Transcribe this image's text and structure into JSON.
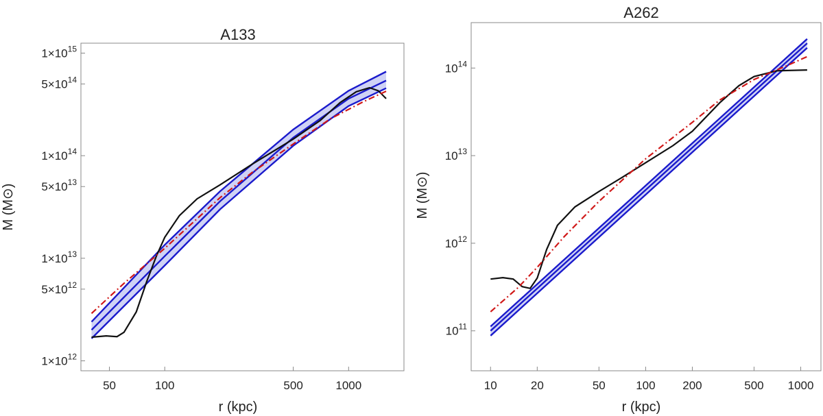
{
  "chart_data": [
    {
      "type": "line",
      "title": "A133",
      "xlabel": "r (kpc)",
      "ylabel": "M (M⊙)",
      "xscale": "log",
      "yscale": "log",
      "xlim": [
        35,
        2000
      ],
      "ylim": [
        800000000000.0,
        1250000000000000.0
      ],
      "x_ticks": [
        {
          "value": 50,
          "label": "50"
        },
        {
          "value": 100,
          "label": "100"
        },
        {
          "value": 500,
          "label": "500"
        },
        {
          "value": 1000,
          "label": "1000"
        }
      ],
      "y_ticks": [
        {
          "value": 1000000000000.0,
          "mant": "1",
          "exp": "12"
        },
        {
          "value": 5000000000000.0,
          "mant": "5",
          "exp": "12"
        },
        {
          "value": 10000000000000.0,
          "mant": "1",
          "exp": "13"
        },
        {
          "value": 50000000000000.0,
          "mant": "5",
          "exp": "13"
        },
        {
          "value": 100000000000000.0,
          "mant": "1",
          "exp": "14"
        },
        {
          "value": 500000000000000.0,
          "mant": "5",
          "exp": "14"
        },
        {
          "value": 1000000000000000.0,
          "mant": "1",
          "exp": "15"
        }
      ],
      "series": [
        {
          "kind": "band",
          "color": "#1a1acc",
          "fill": "#cfd2f5",
          "upper": [
            [
              40,
              2400000000000.0
            ],
            [
              100,
              13500000000000.0
            ],
            [
              200,
              45000000000000.0
            ],
            [
              500,
              180000000000000.0
            ],
            [
              1000,
              430000000000000.0
            ],
            [
              1600,
              660000000000000.0
            ]
          ],
          "middle": [
            [
              40,
              2000000000000.0
            ],
            [
              100,
              10500000000000.0
            ],
            [
              200,
              36000000000000.0
            ],
            [
              500,
              150000000000000.0
            ],
            [
              1000,
              360000000000000.0
            ],
            [
              1600,
              540000000000000.0
            ]
          ],
          "lower": [
            [
              40,
              1650000000000.0
            ],
            [
              100,
              8500000000000.0
            ],
            [
              200,
              30000000000000.0
            ],
            [
              500,
              125000000000000.0
            ],
            [
              1000,
              305000000000000.0
            ],
            [
              1600,
              455000000000000.0
            ]
          ]
        },
        {
          "kind": "line",
          "color": "#111111",
          "dash": "",
          "points": [
            [
              40,
              1700000000000.0
            ],
            [
              48,
              1750000000000.0
            ],
            [
              55,
              1720000000000.0
            ],
            [
              60,
              1900000000000.0
            ],
            [
              70,
              3000000000000.0
            ],
            [
              80,
              6000000000000.0
            ],
            [
              90,
              10500000000000.0
            ],
            [
              100,
              16000000000000.0
            ],
            [
              120,
              26000000000000.0
            ],
            [
              150,
              38000000000000.0
            ],
            [
              200,
              52000000000000.0
            ],
            [
              300,
              83000000000000.0
            ],
            [
              500,
              145000000000000.0
            ],
            [
              700,
              220000000000000.0
            ],
            [
              900,
              330000000000000.0
            ],
            [
              1100,
              420000000000000.0
            ],
            [
              1300,
              460000000000000.0
            ],
            [
              1450,
              430000000000000.0
            ],
            [
              1600,
              360000000000000.0
            ]
          ]
        },
        {
          "kind": "line",
          "color": "#d01818",
          "dash": "9,4,2,4",
          "points": [
            [
              40,
              2900000000000.0
            ],
            [
              60,
              5700000000000.0
            ],
            [
              100,
              12500000000000.0
            ],
            [
              200,
              39000000000000.0
            ],
            [
              300,
              69000000000000.0
            ],
            [
              500,
              130000000000000.0
            ],
            [
              800,
              230000000000000.0
            ],
            [
              1200,
              335000000000000.0
            ],
            [
              1600,
              425000000000000.0
            ]
          ]
        }
      ]
    },
    {
      "type": "line",
      "title": "A262",
      "xlabel": "r (kpc)",
      "ylabel": "M (M⊙)",
      "xscale": "log",
      "yscale": "log",
      "xlim": [
        7.5,
        1350
      ],
      "ylim": [
        35000000000.0,
        330000000000000.0
      ],
      "x_ticks": [
        {
          "value": 10,
          "label": "10"
        },
        {
          "value": 20,
          "label": "20"
        },
        {
          "value": 50,
          "label": "50"
        },
        {
          "value": 100,
          "label": "100"
        },
        {
          "value": 200,
          "label": "200"
        },
        {
          "value": 500,
          "label": "500"
        },
        {
          "value": 1000,
          "label": "1000"
        }
      ],
      "y_ticks": [
        {
          "value": 100000000000.0,
          "mant": "",
          "exp": "11"
        },
        {
          "value": 1000000000000.0,
          "mant": "",
          "exp": "12"
        },
        {
          "value": 10000000000000.0,
          "mant": "",
          "exp": "13"
        },
        {
          "value": 100000000000000.0,
          "mant": "",
          "exp": "14"
        }
      ],
      "series": [
        {
          "kind": "band",
          "color": "#1a1acc",
          "fill": "#cfd2f5",
          "upper": [
            [
              10,
              112000000000.0
            ],
            [
              1100,
              215000000000000.0
            ]
          ],
          "middle": [
            [
              10,
              100000000000.0
            ],
            [
              1100,
              192000000000000.0
            ]
          ],
          "lower": [
            [
              10,
              88000000000.0
            ],
            [
              1100,
              170000000000000.0
            ]
          ]
        },
        {
          "kind": "line",
          "color": "#111111",
          "dash": "",
          "points": [
            [
              10,
              390000000000.0
            ],
            [
              12,
              405000000000.0
            ],
            [
              14,
              390000000000.0
            ],
            [
              16,
              320000000000.0
            ],
            [
              18,
              305000000000.0
            ],
            [
              20,
              400000000000.0
            ],
            [
              23,
              850000000000.0
            ],
            [
              27,
              1600000000000.0
            ],
            [
              35,
              2600000000000.0
            ],
            [
              50,
              3900000000000.0
            ],
            [
              70,
              5600000000000.0
            ],
            [
              100,
              8300000000000.0
            ],
            [
              150,
              13000000000000.0
            ],
            [
              200,
              19000000000000.0
            ],
            [
              300,
              40000000000000.0
            ],
            [
              400,
              63000000000000.0
            ],
            [
              500,
              80000000000000.0
            ],
            [
              700,
              93000000000000.0
            ],
            [
              1100,
              95000000000000.0
            ]
          ]
        },
        {
          "kind": "line",
          "color": "#d01818",
          "dash": "9,4,2,4",
          "points": [
            [
              10,
              165000000000.0
            ],
            [
              15,
              310000000000.0
            ],
            [
              20,
              530000000000.0
            ],
            [
              30,
              1200000000000.0
            ],
            [
              50,
              3000000000000.0
            ],
            [
              100,
              9200000000000.0
            ],
            [
              200,
              24000000000000.0
            ],
            [
              300,
              43000000000000.0
            ],
            [
              500,
              74000000000000.0
            ],
            [
              800,
              105000000000000.0
            ],
            [
              1100,
              135000000000000.0
            ]
          ]
        }
      ]
    }
  ]
}
